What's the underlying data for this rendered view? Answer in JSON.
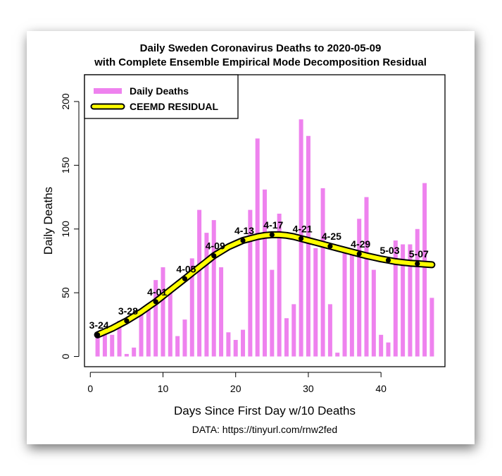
{
  "chart_data": {
    "type": "bar",
    "title": "Daily Sweden Coronavirus Deaths to 2020-05-09",
    "subtitle": "with Complete Ensemble Empirical Mode Decomposition Residual",
    "xlabel": "Days Since First Day w/10 Deaths",
    "ylabel": "Daily Deaths",
    "source": "DATA: https://tinyurl.com/rnw2fed",
    "xlim": [
      -0.8,
      48.8
    ],
    "ylim": [
      -8,
      221
    ],
    "x_ticks": [
      0,
      10,
      20,
      30,
      40
    ],
    "y_ticks": [
      0,
      50,
      100,
      150,
      200
    ],
    "grid": false,
    "legend_position": "top-left",
    "x": [
      1,
      2,
      3,
      4,
      5,
      6,
      7,
      8,
      9,
      10,
      11,
      12,
      13,
      14,
      15,
      16,
      17,
      18,
      19,
      20,
      21,
      22,
      23,
      24,
      25,
      26,
      27,
      28,
      29,
      30,
      31,
      32,
      33,
      34,
      35,
      36,
      37,
      38,
      39,
      40,
      41,
      42,
      43,
      44,
      45,
      46,
      47
    ],
    "series": [
      {
        "name": "Daily Deaths",
        "type": "bar",
        "color": "#ee82ee",
        "values": [
          17,
          17,
          17,
          28,
          2,
          7,
          37,
          37,
          60,
          70,
          51,
          16,
          29,
          77,
          115,
          97,
          107,
          70,
          19,
          13,
          21,
          115,
          171,
          131,
          68,
          112,
          30,
          41,
          186,
          173,
          85,
          132,
          41,
          3,
          81,
          82,
          108,
          125,
          68,
          17,
          11,
          91,
          88,
          88,
          100,
          136,
          46
        ]
      },
      {
        "name": "CEEMD RESIDUAL",
        "type": "line",
        "color": "#ffff00",
        "outline": "#000000",
        "values": [
          17,
          19.5,
          22,
          25,
          28,
          31.5,
          35,
          39,
          43,
          47.5,
          52,
          56.5,
          61,
          65.5,
          70,
          74.5,
          79,
          82.5,
          86,
          88.5,
          91,
          92.5,
          94,
          95,
          95.5,
          95.5,
          95,
          94,
          92.5,
          91,
          89.5,
          88,
          86.5,
          85,
          83.5,
          82,
          80.5,
          79,
          77.8,
          76.5,
          75.5,
          74.5,
          73.8,
          73.2,
          72.8,
          72.4,
          72
        ]
      }
    ],
    "date_labels": [
      {
        "x": 1,
        "label": "3-24"
      },
      {
        "x": 5,
        "label": "3-28"
      },
      {
        "x": 9,
        "label": "4-01"
      },
      {
        "x": 13,
        "label": "4-05"
      },
      {
        "x": 17,
        "label": "4-09"
      },
      {
        "x": 21,
        "label": "4-13"
      },
      {
        "x": 25,
        "label": "4-17"
      },
      {
        "x": 29,
        "label": "4-21"
      },
      {
        "x": 33,
        "label": "4-25"
      },
      {
        "x": 37,
        "label": "4-29"
      },
      {
        "x": 41,
        "label": "5-03"
      },
      {
        "x": 45,
        "label": "5-07"
      }
    ]
  }
}
